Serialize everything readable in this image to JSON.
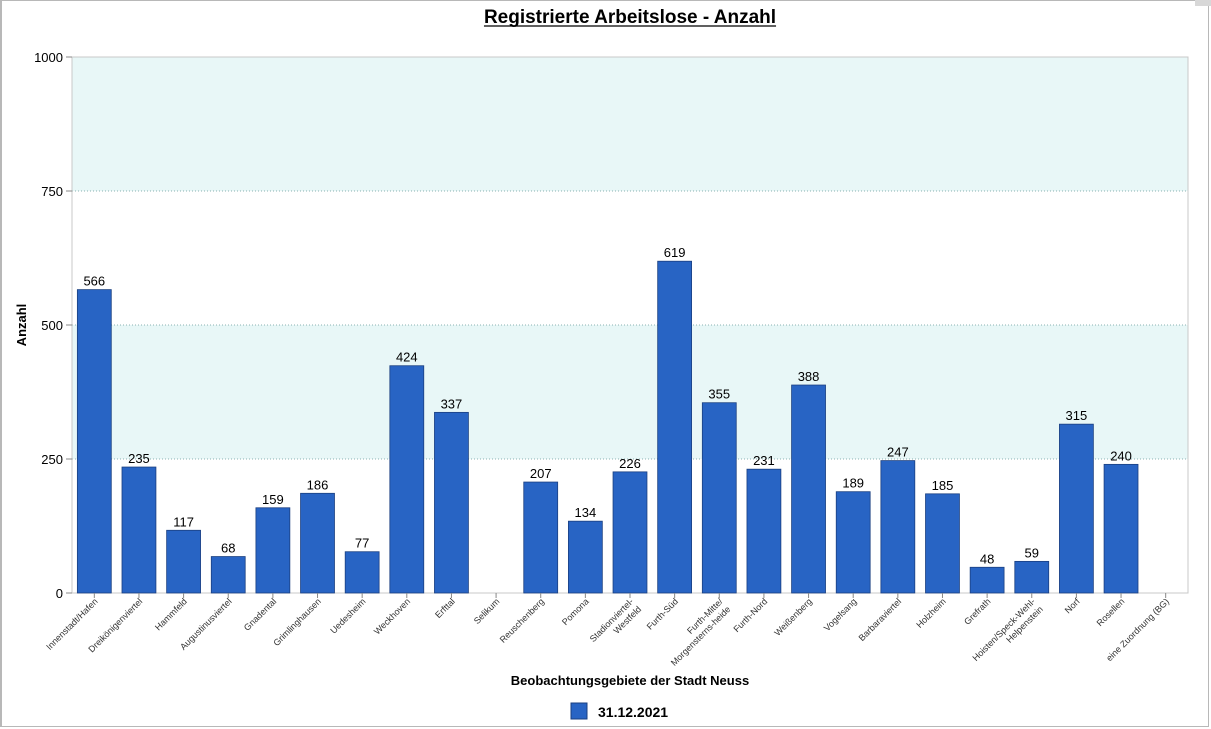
{
  "chart_data": {
    "type": "bar",
    "title": "Registrierte Arbeitslose - Anzahl",
    "xlabel": "Beobachtungsgebiete der Stadt Neuss",
    "ylabel": "Anzahl",
    "ylim": [
      0,
      1000
    ],
    "yticks": [
      0,
      250,
      500,
      750,
      1000
    ],
    "grid": true,
    "legend_position": "bottom",
    "categories": [
      "Innenstadt/Hafen",
      "Dreikönigenviertel",
      "Hammfeld",
      "Augustinusviertel",
      "Gnadental",
      "Grimlinghausen",
      "Uedesheim",
      "Weckhoven",
      "Erfttal",
      "Selikum",
      "Reuschenberg",
      "Pomona",
      [
        "Stadionviertel-",
        "Westfeld"
      ],
      "Furth-Süd",
      [
        "Furth-Mitte/",
        "Morgensterns-heide"
      ],
      "Furth-Nord",
      "Weißenberg",
      "Vogelsang",
      "Barbaraviertel",
      "Holzheim",
      "Grefrath",
      [
        "Hoisten/Speck-Wehl-",
        "Helpenstein"
      ],
      "Norf",
      "Rosellen",
      "eine Zuordnung (BG)"
    ],
    "series": [
      {
        "name": "31.12.2021",
        "color": "#2864c4",
        "values": [
          566,
          235,
          117,
          68,
          159,
          186,
          77,
          424,
          337,
          null,
          207,
          134,
          226,
          619,
          355,
          231,
          388,
          189,
          247,
          185,
          48,
          59,
          315,
          240,
          null
        ]
      }
    ],
    "band_color": "#e8f7f7",
    "bar_border_color": "#1a3f80"
  }
}
